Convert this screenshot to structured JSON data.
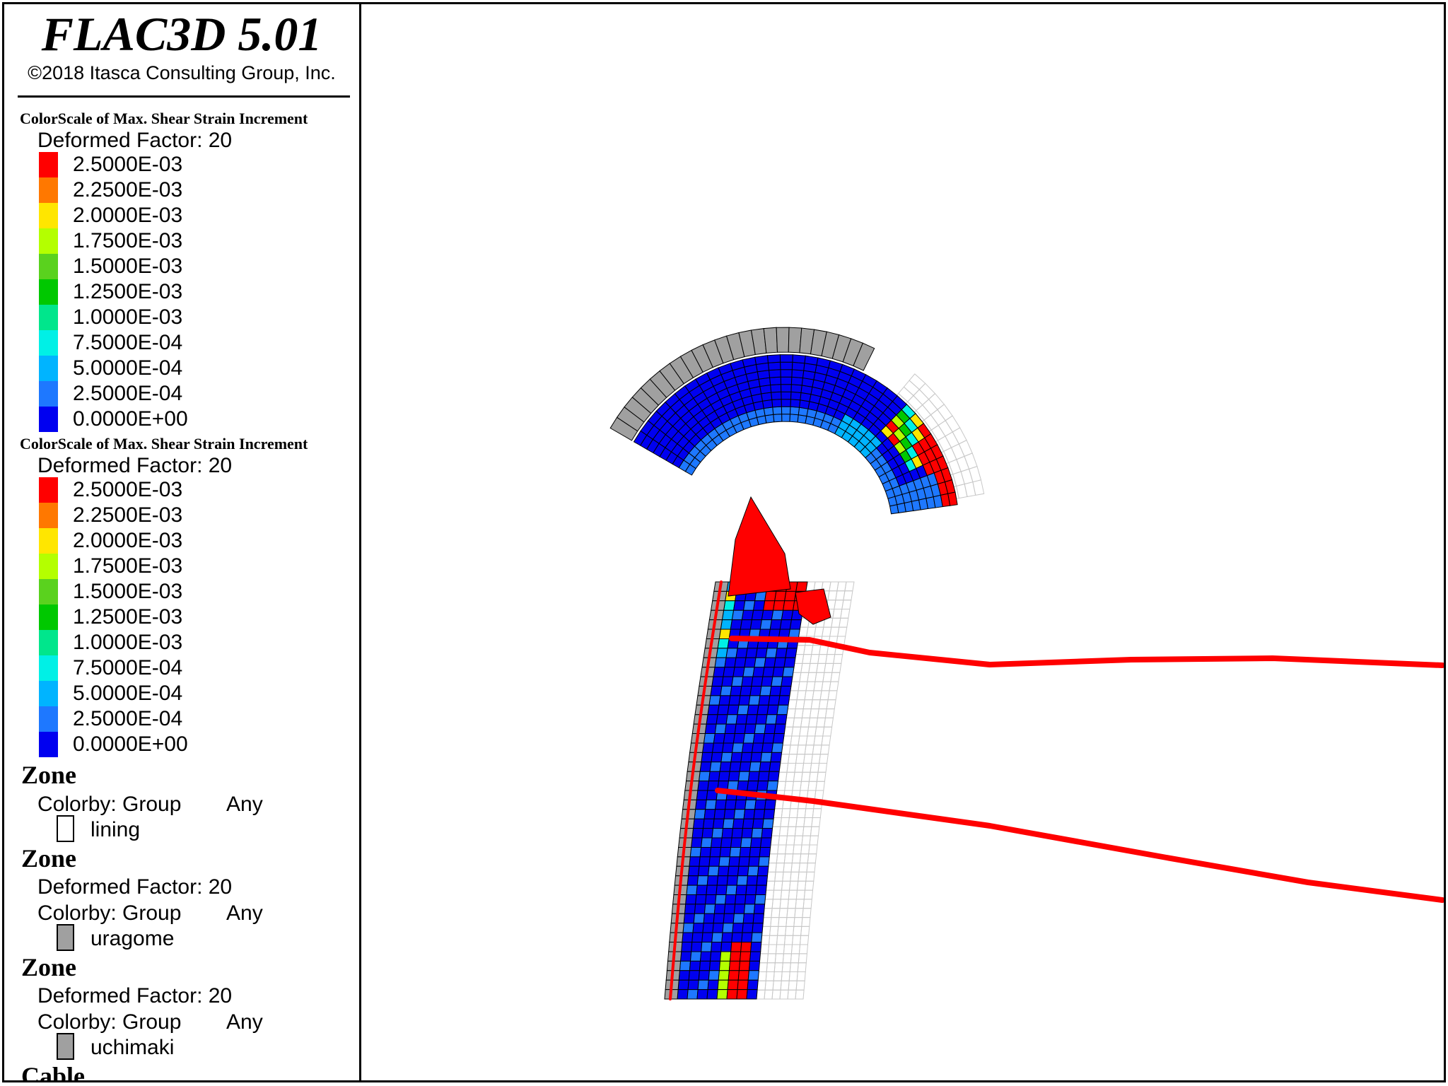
{
  "header": {
    "title": "FLAC3D 5.01",
    "copyright": "©2018 Itasca Consulting Group, Inc."
  },
  "colorscales": [
    {
      "title": "ColorScale of Max. Shear Strain Increment",
      "deformed": "Deformed Factor: 20",
      "entries": [
        {
          "label": "2.5000E-03",
          "color": "#ff0000"
        },
        {
          "label": "2.2500E-03",
          "color": "#ff7800"
        },
        {
          "label": "2.0000E-03",
          "color": "#ffe600"
        },
        {
          "label": "1.7500E-03",
          "color": "#b4ff00"
        },
        {
          "label": "1.5000E-03",
          "color": "#5ad21e"
        },
        {
          "label": "1.2500E-03",
          "color": "#00c800"
        },
        {
          "label": "1.0000E-03",
          "color": "#00e68c"
        },
        {
          "label": "7.5000E-04",
          "color": "#00f0e6"
        },
        {
          "label": "5.0000E-04",
          "color": "#00b4ff"
        },
        {
          "label": "2.5000E-04",
          "color": "#1e78ff"
        },
        {
          "label": "0.0000E+00",
          "color": "#0000f0"
        }
      ]
    },
    {
      "title": "ColorScale of Max. Shear Strain Increment",
      "deformed": "Deformed Factor: 20",
      "entries": [
        {
          "label": "2.5000E-03",
          "color": "#ff0000"
        },
        {
          "label": "2.2500E-03",
          "color": "#ff7800"
        },
        {
          "label": "2.0000E-03",
          "color": "#ffe600"
        },
        {
          "label": "1.7500E-03",
          "color": "#b4ff00"
        },
        {
          "label": "1.5000E-03",
          "color": "#5ad21e"
        },
        {
          "label": "1.2500E-03",
          "color": "#00c800"
        },
        {
          "label": "1.0000E-03",
          "color": "#00e68c"
        },
        {
          "label": "7.5000E-04",
          "color": "#00f0e6"
        },
        {
          "label": "5.0000E-04",
          "color": "#00b4ff"
        },
        {
          "label": "2.5000E-04",
          "color": "#1e78ff"
        },
        {
          "label": "0.0000E+00",
          "color": "#0000f0"
        }
      ]
    }
  ],
  "zones": [
    {
      "heading": "Zone",
      "colorby": "Colorby: Group",
      "any": "Any",
      "group": "lining",
      "swatch": "#ffffff"
    },
    {
      "heading": "Zone",
      "deformed": "Deformed Factor: 20",
      "colorby": "Colorby: Group",
      "any": "Any",
      "group": "uragome",
      "swatch": "#a0a0a0"
    },
    {
      "heading": "Zone",
      "deformed": "Deformed Factor: 20",
      "colorby": "Colorby: Group",
      "any": "Any",
      "group": "uchimaki",
      "swatch": "#a0a0a0"
    }
  ],
  "cable": {
    "heading": "Cable"
  },
  "colors": {
    "cable": "#ff0000",
    "grid_line": "#c8c8c8",
    "mesh_line": "#000000",
    "shell": "#a0a0a0"
  }
}
